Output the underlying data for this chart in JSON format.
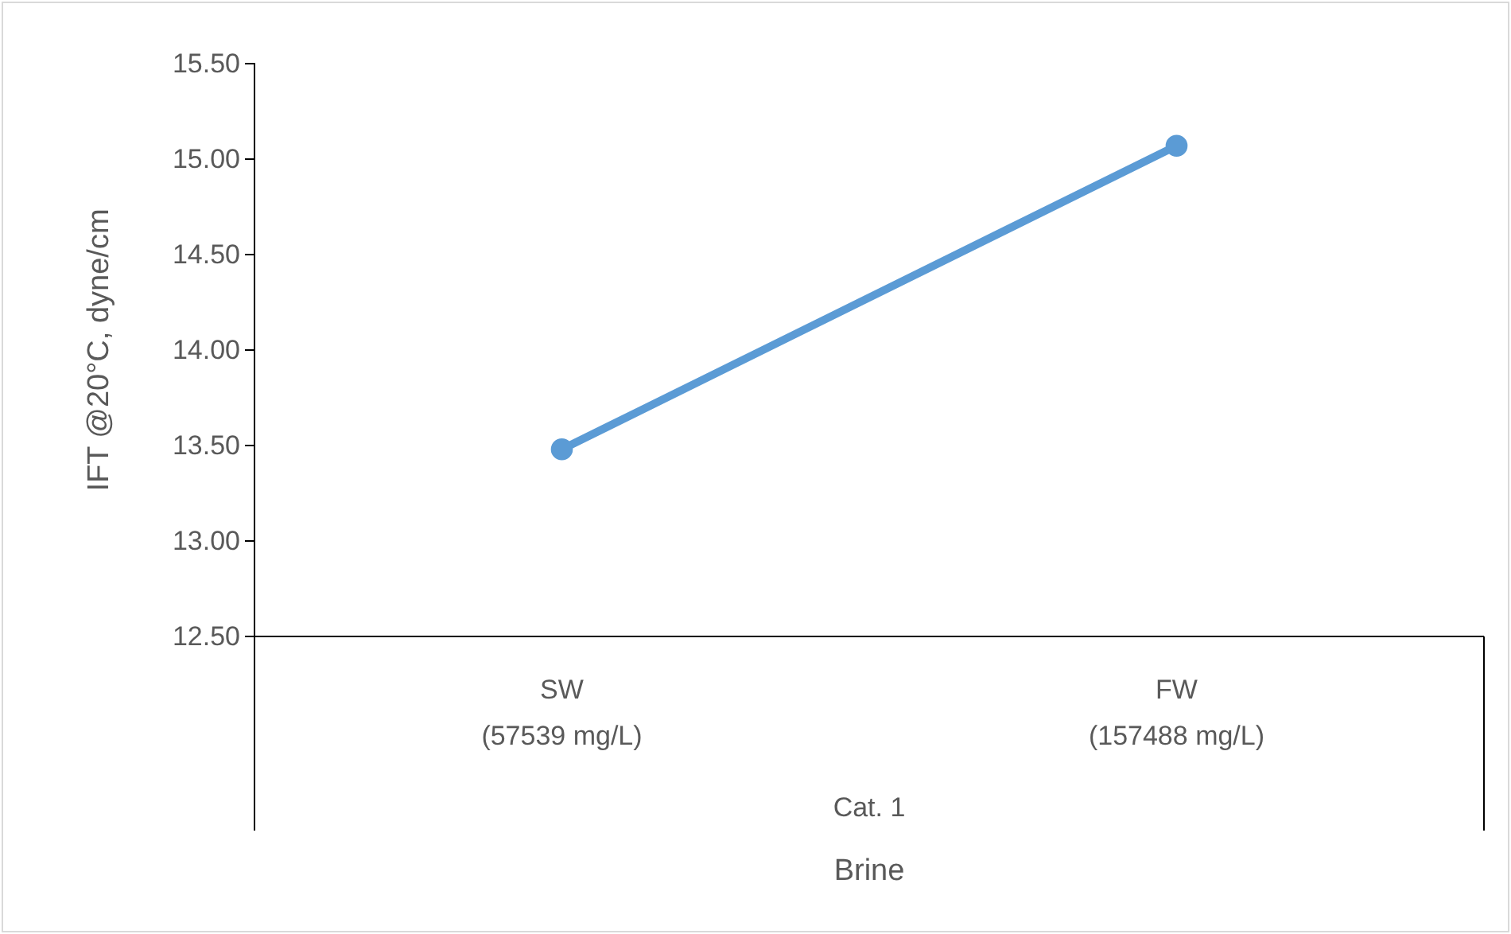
{
  "chart_data": {
    "type": "line",
    "xlabel": "Brine",
    "ylabel": "IFT @20°C, dyne/cm",
    "categories": [
      "SW\n(57539 mg/L)",
      "FW\n(157488 mg/L)"
    ],
    "series": [
      {
        "color": "#5b9bd5",
        "values": [
          13.48,
          15.07
        ]
      }
    ],
    "ylim": [
      12.5,
      15.5
    ],
    "yticks": [
      {
        "value": 12.5,
        "label": "12.50"
      },
      {
        "value": 13,
        "label": "13.00"
      },
      {
        "value": 13.5,
        "label": "13.50"
      },
      {
        "value": 14,
        "label": "14.00"
      },
      {
        "value": 14.5,
        "label": "14.50"
      },
      {
        "value": 15,
        "label": "15.00"
      },
      {
        "value": 15.5,
        "label": "15.50"
      }
    ],
    "annotations": [
      "Cat. 1"
    ],
    "marker": "circle",
    "line_style": "solid",
    "grid": false
  }
}
